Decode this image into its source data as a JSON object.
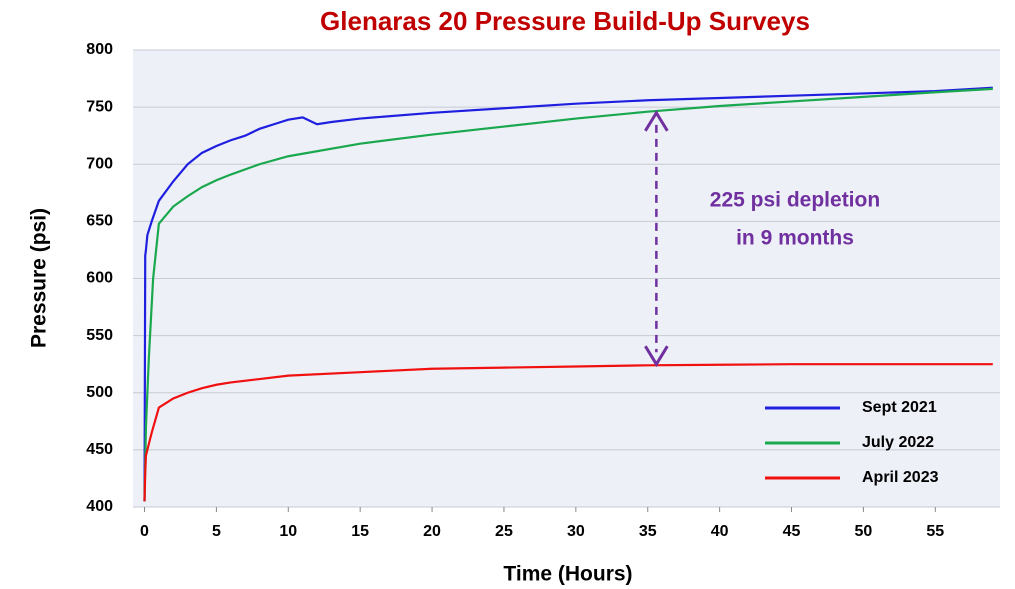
{
  "chart_data": {
    "type": "line",
    "title": "Glenaras 20 Pressure Build-Up Surveys",
    "x_label": "Time (Hours)",
    "y_label": "Pressure (psi)",
    "xlim": [
      -0.8,
      59.5
    ],
    "ylim": [
      400,
      800
    ],
    "xticks": [
      0,
      5,
      10,
      15,
      20,
      25,
      30,
      35,
      40,
      45,
      50,
      55
    ],
    "yticks": [
      400,
      450,
      500,
      550,
      600,
      650,
      700,
      750,
      800
    ],
    "grid": true,
    "legend": "lower right",
    "annotation": {
      "lines": [
        "225 psi depletion",
        "in 9 months"
      ],
      "color": "#7030a0",
      "x": 35.6,
      "y": [
        745,
        525
      ]
    },
    "series": [
      {
        "name": "Sept 2021",
        "color": "#1f1fe0",
        "x": [
          0,
          0.05,
          0.1,
          0.2,
          0.5,
          1,
          2,
          3,
          4,
          5,
          6,
          7,
          8,
          9,
          10,
          11,
          12,
          13,
          15,
          16,
          20,
          25,
          30,
          35,
          40,
          45,
          50,
          55,
          59
        ],
        "values": [
          405,
          620,
          625,
          638,
          650,
          668,
          685,
          700,
          710,
          716,
          721,
          725,
          731,
          735,
          739,
          741,
          735,
          737,
          740,
          741,
          745,
          749,
          753,
          756,
          758,
          760,
          762,
          764,
          767
        ]
      },
      {
        "name": "July 2022",
        "color": "#1aa84f",
        "x": [
          0,
          0.1,
          0.3,
          0.6,
          1,
          2,
          3,
          4,
          5,
          6,
          8,
          10,
          15,
          20,
          25,
          30,
          35,
          40,
          45,
          50,
          55,
          59
        ],
        "values": [
          405,
          470,
          530,
          600,
          648,
          663,
          672,
          680,
          686,
          691,
          700,
          707,
          718,
          726,
          733,
          740,
          746,
          751,
          755,
          759,
          763,
          766
        ]
      },
      {
        "name": "April 2023",
        "color": "#f01010",
        "x": [
          0,
          0.05,
          0.1,
          0.3,
          0.5,
          1,
          2,
          3,
          4,
          5,
          6,
          8,
          10,
          15,
          20,
          25,
          30,
          35,
          40,
          45,
          50,
          59
        ],
        "values": [
          405,
          430,
          445,
          455,
          465,
          487,
          495,
          500,
          504,
          507,
          509,
          512,
          515,
          518,
          521,
          522,
          523,
          524,
          524.5,
          525,
          525,
          525
        ]
      }
    ]
  }
}
